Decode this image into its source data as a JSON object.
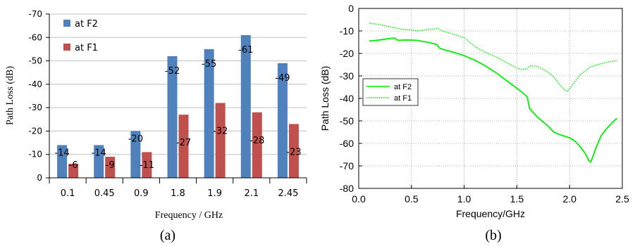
{
  "chart_data": [
    {
      "type": "bar",
      "panel_label": "(a)",
      "xlabel": "Frequency / GHz",
      "ylabel": "Path Loss (dB)",
      "categories": [
        "0.1",
        "0.45",
        "0.9",
        "1.8",
        "1.9",
        "2.1",
        "2.45"
      ],
      "ylim": [
        0,
        -70
      ],
      "y_ticks": [
        "-70",
        "-60",
        "-50",
        "-40",
        "-30",
        "-20",
        "-10",
        "0"
      ],
      "legend_position": "top-left",
      "series": [
        {
          "name": "at F2",
          "color": "#4f81bd",
          "values": [
            -14,
            -14,
            -20,
            -52,
            -55,
            -61,
            -49
          ]
        },
        {
          "name": "at F1",
          "color": "#c0504d",
          "values": [
            -6,
            -9,
            -11,
            -27,
            -32,
            -28,
            -23
          ]
        }
      ],
      "data_labels": {
        "at F2": [
          "-14",
          "-14",
          "-20",
          "-52",
          "-55",
          "-61",
          "-49"
        ],
        "at F1": [
          "-6",
          "-9",
          "-11",
          "-27",
          "-32",
          "-28",
          "-23"
        ]
      },
      "grid": "horizontal"
    },
    {
      "type": "line",
      "panel_label": "(b)",
      "xlabel": "Frequency/GHz",
      "ylabel": "Path Loss (dB)",
      "xlim": [
        0,
        2.5
      ],
      "ylim": [
        -80,
        0
      ],
      "x_ticks": [
        "0.0",
        "0.5",
        "1.0",
        "1.5",
        "2.0",
        "2.5"
      ],
      "y_ticks": [
        "0",
        "-10",
        "-20",
        "-30",
        "-40",
        "-50",
        "-60",
        "-70",
        "-80"
      ],
      "legend_position": "middle-left",
      "grid": "dotted",
      "series": [
        {
          "name": "at F2",
          "style": "solid",
          "color": "#00ee00",
          "points": [
            [
              0.1,
              -14.5
            ],
            [
              0.2,
              -14
            ],
            [
              0.3,
              -13.3
            ],
            [
              0.34,
              -13.2
            ],
            [
              0.37,
              -14.2
            ],
            [
              0.45,
              -14
            ],
            [
              0.55,
              -14.2
            ],
            [
              0.65,
              -15
            ],
            [
              0.74,
              -16
            ],
            [
              0.77,
              -17.8
            ],
            [
              0.9,
              -19.5
            ],
            [
              1.0,
              -21
            ],
            [
              1.1,
              -23
            ],
            [
              1.2,
              -25.5
            ],
            [
              1.3,
              -28.5
            ],
            [
              1.4,
              -32
            ],
            [
              1.5,
              -35.5
            ],
            [
              1.58,
              -38.5
            ],
            [
              1.6,
              -39.5
            ],
            [
              1.62,
              -44.5
            ],
            [
              1.65,
              -46
            ],
            [
              1.7,
              -48.5
            ],
            [
              1.8,
              -52.5
            ],
            [
              1.85,
              -55
            ],
            [
              1.9,
              -56
            ],
            [
              2.0,
              -57.5
            ],
            [
              2.05,
              -59
            ],
            [
              2.1,
              -61.5
            ],
            [
              2.15,
              -64.5
            ],
            [
              2.18,
              -67.5
            ],
            [
              2.2,
              -68.3
            ],
            [
              2.22,
              -66
            ],
            [
              2.25,
              -62
            ],
            [
              2.3,
              -56.5
            ],
            [
              2.35,
              -53.5
            ],
            [
              2.4,
              -51
            ],
            [
              2.45,
              -48.8
            ]
          ]
        },
        {
          "name": "at F1",
          "style": "dotted",
          "color": "#00ee00",
          "points": [
            [
              0.1,
              -6.5
            ],
            [
              0.2,
              -7.2
            ],
            [
              0.3,
              -8.2
            ],
            [
              0.4,
              -9.2
            ],
            [
              0.5,
              -9.6
            ],
            [
              0.55,
              -10
            ],
            [
              0.6,
              -9.8
            ],
            [
              0.65,
              -9.3
            ],
            [
              0.7,
              -9.2
            ],
            [
              0.75,
              -8.8
            ],
            [
              0.78,
              -9.8
            ],
            [
              0.9,
              -11.5
            ],
            [
              1.0,
              -13
            ],
            [
              1.1,
              -17
            ],
            [
              1.2,
              -19.5
            ],
            [
              1.3,
              -21.5
            ],
            [
              1.4,
              -24
            ],
            [
              1.5,
              -26.5
            ],
            [
              1.55,
              -27.2
            ],
            [
              1.6,
              -26.8
            ],
            [
              1.62,
              -25.5
            ],
            [
              1.7,
              -25.8
            ],
            [
              1.8,
              -28.5
            ],
            [
              1.85,
              -30.5
            ],
            [
              1.9,
              -33.5
            ],
            [
              1.95,
              -36.2
            ],
            [
              1.98,
              -36.8
            ],
            [
              2.02,
              -34.5
            ],
            [
              2.1,
              -29.5
            ],
            [
              2.2,
              -26
            ],
            [
              2.3,
              -24.5
            ],
            [
              2.4,
              -23.5
            ],
            [
              2.45,
              -23.2
            ]
          ]
        }
      ]
    }
  ]
}
